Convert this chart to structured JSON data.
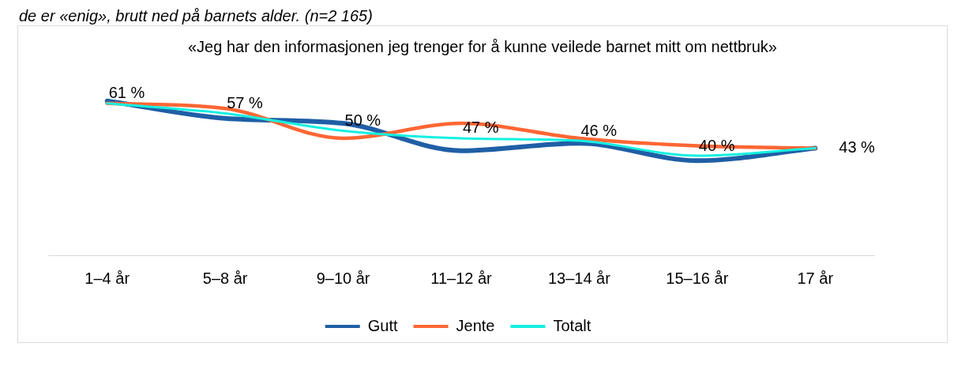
{
  "chart_data": {
    "type": "line",
    "subtitle": "de er «enig», brutt ned på barnets alder. (n=2 165)",
    "title": "«Jeg har den informasjonen jeg trenger for å kunne veilede barnet mitt om nettbruk»",
    "categories": [
      "1–4 år",
      "5–8 år",
      "9–10 år",
      "11–12 år",
      "13–14 år",
      "15–16 år",
      "17 år"
    ],
    "series": [
      {
        "name": "Gutt",
        "color": "#1f5fa6",
        "values": [
          62,
          55,
          53,
          42,
          45,
          38,
          43
        ]
      },
      {
        "name": "Jente",
        "color": "#ff6633",
        "values": [
          61,
          59,
          47,
          53,
          47,
          44,
          43
        ]
      },
      {
        "name": "Totalt",
        "color": "#14f0e0",
        "values": [
          61,
          57,
          50,
          47,
          46,
          40,
          43
        ],
        "value_labels": [
          "61 %",
          "57 %",
          "50 %",
          "47 %",
          "46 %",
          "40 %",
          "43 %"
        ]
      }
    ],
    "grid": false,
    "legend": "bottom",
    "marker": "none",
    "line_style": "solid"
  }
}
